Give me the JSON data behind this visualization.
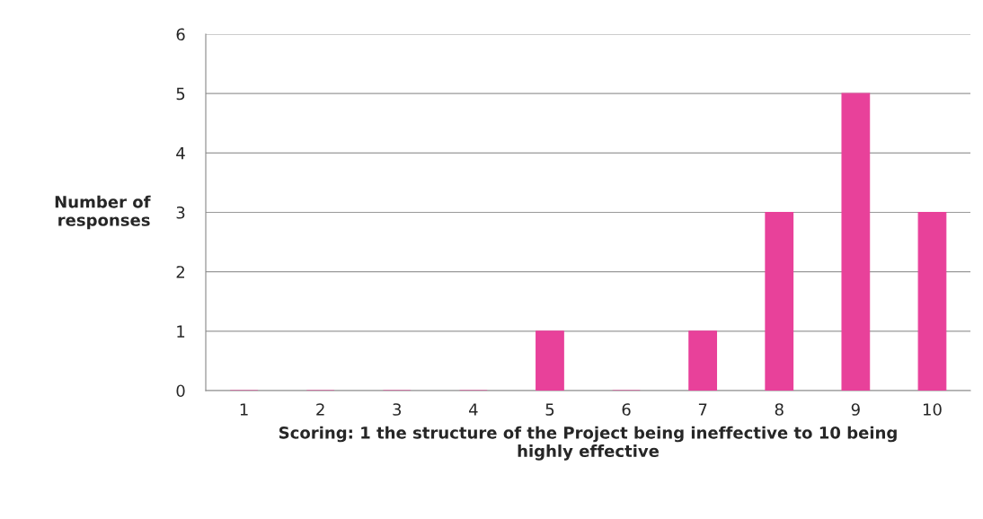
{
  "chart_data": {
    "type": "bar",
    "categories": [
      "1",
      "2",
      "3",
      "4",
      "5",
      "6",
      "7",
      "8",
      "9",
      "10"
    ],
    "values": [
      0,
      0,
      0,
      0,
      1,
      0,
      1,
      3,
      5,
      3
    ],
    "color": "#e8419a",
    "ylabel": "Number of\nresponses",
    "xlabel": "Scoring: 1 the structure of the Project being ineffective to 10 being\nhighly effective",
    "ylim": [
      0,
      6
    ],
    "yticks": [
      0,
      1,
      2,
      3,
      4,
      5,
      6
    ],
    "grid": "y"
  }
}
